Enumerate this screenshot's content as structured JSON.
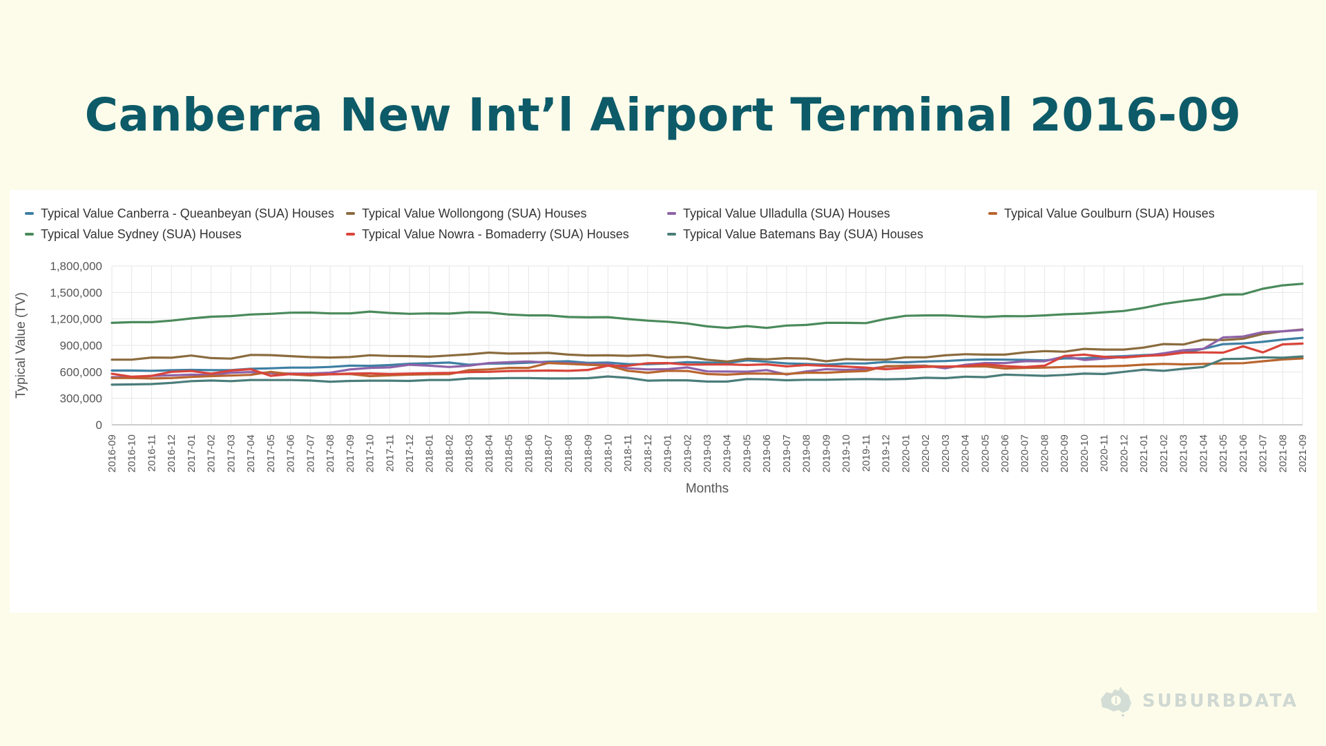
{
  "title": "Canberra New Int’l Airport Terminal 2016-09",
  "watermark": {
    "text": "SUBURBDATA",
    "icon": "australia-map-logo-icon"
  },
  "chart_data": {
    "type": "line",
    "xlabel": "Months",
    "ylabel": "Typical Value (TV)",
    "ylim": [
      0,
      1800000
    ],
    "yticks": [
      0,
      300000,
      600000,
      900000,
      1200000,
      1500000,
      1800000
    ],
    "ytick_labels": [
      "0",
      "300,000",
      "600,000",
      "900,000",
      "1,200,000",
      "1,500,000",
      "1,800,000"
    ],
    "grid": true,
    "legend_position": "top",
    "x": [
      "2016-09",
      "2016-10",
      "2016-11",
      "2016-12",
      "2017-01",
      "2017-02",
      "2017-03",
      "2017-04",
      "2017-05",
      "2017-06",
      "2017-07",
      "2017-08",
      "2017-09",
      "2017-10",
      "2017-11",
      "2017-12",
      "2018-01",
      "2018-02",
      "2018-03",
      "2018-04",
      "2018-05",
      "2018-06",
      "2018-07",
      "2018-08",
      "2018-09",
      "2018-10",
      "2018-11",
      "2018-12",
      "2019-01",
      "2019-02",
      "2019-03",
      "2019-04",
      "2019-05",
      "2019-06",
      "2019-07",
      "2019-08",
      "2019-09",
      "2019-10",
      "2019-11",
      "2019-12",
      "2020-01",
      "2020-02",
      "2020-03",
      "2020-04",
      "2020-05",
      "2020-06",
      "2020-07",
      "2020-08",
      "2020-09",
      "2020-10",
      "2020-11",
      "2020-12",
      "2021-01",
      "2021-02",
      "2021-03",
      "2021-04",
      "2021-05",
      "2021-06",
      "2021-07",
      "2021-08",
      "2021-09"
    ],
    "series": [
      {
        "name": "Typical Value Canberra - Queanbeyan (SUA) Houses",
        "color": "#3e7fa3",
        "values": [
          615000,
          615000,
          612000,
          618000,
          622000,
          620000,
          620000,
          635000,
          640000,
          648000,
          648000,
          656000,
          670000,
          668000,
          677000,
          692000,
          698000,
          705000,
          680000,
          693000,
          695000,
          704000,
          715000,
          720000,
          702000,
          705000,
          688000,
          686000,
          695000,
          710000,
          705000,
          700000,
          730000,
          714000,
          696000,
          690000,
          682000,
          695000,
          696000,
          712000,
          708000,
          718000,
          722000,
          735000,
          740000,
          738000,
          736000,
          730000,
          752000,
          752000,
          770000,
          778000,
          790000,
          800000,
          818000,
          860000,
          914000,
          922000,
          940000,
          966000,
          985000
        ]
      },
      {
        "name": "Typical Value Wollongong (SUA) Houses",
        "color": "#8b6b3e",
        "values": [
          738000,
          738000,
          762000,
          760000,
          785000,
          756000,
          750000,
          792000,
          790000,
          778000,
          767000,
          762000,
          768000,
          788000,
          780000,
          778000,
          772000,
          785000,
          798000,
          818000,
          807000,
          810000,
          815000,
          795000,
          786000,
          787000,
          782000,
          790000,
          764000,
          770000,
          737000,
          717000,
          748000,
          742000,
          755000,
          750000,
          720000,
          745000,
          738000,
          738000,
          765000,
          765000,
          787000,
          800000,
          795000,
          795000,
          820000,
          835000,
          828000,
          860000,
          852000,
          852000,
          875000,
          915000,
          910000,
          965000,
          960000,
          975000,
          1030000,
          1060000,
          1080000
        ]
      },
      {
        "name": "Typical Value Ulladulla (SUA) Houses",
        "color": "#8e62a8",
        "values": [
          540000,
          540000,
          555000,
          560000,
          568000,
          566000,
          590000,
          598000,
          585000,
          580000,
          580000,
          590000,
          628000,
          645000,
          650000,
          680000,
          670000,
          655000,
          670000,
          700000,
          710000,
          718000,
          705000,
          700000,
          690000,
          688000,
          640000,
          628000,
          630000,
          650000,
          605000,
          603000,
          602000,
          620000,
          570000,
          605000,
          630000,
          622000,
          630000,
          660000,
          670000,
          670000,
          640000,
          680000,
          700000,
          700000,
          720000,
          720000,
          775000,
          735000,
          750000,
          770000,
          780000,
          810000,
          845000,
          860000,
          990000,
          1000000,
          1050000,
          1060000,
          1075000
        ]
      },
      {
        "name": "Typical Value Goulburn (SUA) Houses",
        "color": "#b9652f",
        "values": [
          530000,
          530000,
          525000,
          530000,
          542000,
          552000,
          558000,
          566000,
          600000,
          572000,
          560000,
          572000,
          575000,
          552000,
          560000,
          568000,
          572000,
          574000,
          620000,
          628000,
          645000,
          645000,
          700000,
          690000,
          680000,
          672000,
          612000,
          590000,
          612000,
          610000,
          575000,
          568000,
          580000,
          580000,
          576000,
          590000,
          590000,
          602000,
          610000,
          665000,
          665000,
          665000,
          660000,
          660000,
          662000,
          638000,
          645000,
          648000,
          655000,
          662000,
          662000,
          668000,
          682000,
          690000,
          685000,
          690000,
          696000,
          698000,
          720000,
          740000,
          752000
        ]
      },
      {
        "name": "Typical Value Sydney (SUA) Houses",
        "color": "#4a8a5b",
        "values": [
          1155000,
          1163000,
          1163000,
          1180000,
          1205000,
          1225000,
          1232000,
          1250000,
          1258000,
          1270000,
          1272000,
          1262000,
          1262000,
          1283000,
          1267000,
          1258000,
          1262000,
          1260000,
          1275000,
          1272000,
          1250000,
          1240000,
          1240000,
          1222000,
          1218000,
          1220000,
          1198000,
          1180000,
          1168000,
          1148000,
          1115000,
          1098000,
          1118000,
          1098000,
          1125000,
          1132000,
          1155000,
          1155000,
          1152000,
          1200000,
          1235000,
          1240000,
          1240000,
          1230000,
          1222000,
          1232000,
          1230000,
          1240000,
          1252000,
          1260000,
          1275000,
          1290000,
          1325000,
          1370000,
          1402000,
          1428000,
          1475000,
          1478000,
          1542000,
          1580000,
          1598000
        ]
      },
      {
        "name": "Typical Value Nowra - Bomaderry (SUA) Houses",
        "color": "#d9443a",
        "values": [
          578000,
          545000,
          555000,
          600000,
          610000,
          580000,
          615000,
          630000,
          555000,
          575000,
          572000,
          572000,
          580000,
          582000,
          575000,
          580000,
          585000,
          588000,
          598000,
          600000,
          610000,
          612000,
          615000,
          612000,
          622000,
          670000,
          668000,
          698000,
          700000,
          682000,
          683000,
          685000,
          678000,
          685000,
          662000,
          678000,
          668000,
          660000,
          648000,
          630000,
          645000,
          656000,
          660000,
          665000,
          685000,
          665000,
          655000,
          670000,
          780000,
          795000,
          770000,
          762000,
          780000,
          790000,
          818000,
          820000,
          818000,
          890000,
          820000,
          912000,
          920000
        ]
      },
      {
        "name": "Typical Value Batemans Bay (SUA) Houses",
        "color": "#4a7d7a",
        "values": [
          455000,
          458000,
          462000,
          475000,
          495000,
          502000,
          495000,
          508000,
          507000,
          507000,
          502000,
          488000,
          497000,
          500000,
          500000,
          497000,
          508000,
          508000,
          525000,
          525000,
          530000,
          530000,
          525000,
          525000,
          528000,
          548000,
          532000,
          500000,
          505000,
          504000,
          490000,
          490000,
          518000,
          515000,
          505000,
          510000,
          510000,
          515000,
          518000,
          515000,
          520000,
          533000,
          528000,
          545000,
          540000,
          568000,
          562000,
          555000,
          565000,
          580000,
          575000,
          600000,
          625000,
          612000,
          635000,
          655000,
          745000,
          748000,
          765000,
          760000,
          775000
        ]
      }
    ]
  }
}
